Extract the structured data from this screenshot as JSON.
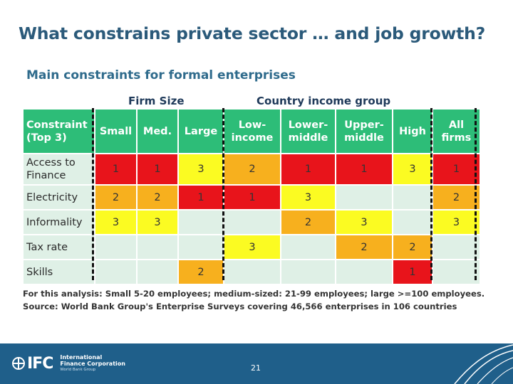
{
  "slide": {
    "title": "What constrains private sector … and job growth?",
    "subtitle": "Main constraints for formal enterprises",
    "groups": {
      "firm_size": "Firm Size",
      "income": "Country income group"
    },
    "headers": [
      "Constraint (Top 3)",
      "Small",
      "Med.",
      "Large",
      "Low-income",
      "Lower-middle",
      "Upper-middle",
      "High",
      "All firms"
    ],
    "rows": [
      {
        "label": "Access to Finance",
        "cells": [
          "1",
          "1",
          "3",
          "2",
          "1",
          "1",
          "3",
          "1"
        ],
        "colors": [
          "red",
          "red",
          "yellow",
          "orange",
          "red",
          "red",
          "yellow",
          "red"
        ]
      },
      {
        "label": "Electricity",
        "cells": [
          "2",
          "2",
          "1",
          "1",
          "3",
          "",
          "",
          "2"
        ],
        "colors": [
          "orange",
          "orange",
          "red",
          "red",
          "yellow",
          "empty",
          "empty",
          "orange"
        ]
      },
      {
        "label": "Informality",
        "cells": [
          "3",
          "3",
          "",
          "",
          "2",
          "3",
          "",
          "3"
        ],
        "colors": [
          "yellow",
          "yellow",
          "empty",
          "empty",
          "orange",
          "yellow",
          "empty",
          "yellow"
        ]
      },
      {
        "label": "Tax rate",
        "cells": [
          "",
          "",
          "",
          "3",
          "",
          "2",
          "2",
          ""
        ],
        "colors": [
          "empty",
          "empty",
          "empty",
          "yellow",
          "empty",
          "orange",
          "orange",
          "empty"
        ]
      },
      {
        "label": "Skills",
        "cells": [
          "",
          "",
          "2",
          "",
          "",
          "",
          "1",
          ""
        ],
        "colors": [
          "empty",
          "empty",
          "orange",
          "empty",
          "empty",
          "empty",
          "red",
          "empty"
        ]
      }
    ],
    "note_line1": "For this analysis: Small 5-20 employees; medium-sized: 21-99 employees; large >=100 employees.",
    "note_line2": "Source: World Bank Group's Enterprise Surveys covering 46,566 enterprises in 106 countries"
  },
  "footer": {
    "logo": "IFC",
    "org_line1": "International",
    "org_line2": "Finance Corporation",
    "org_line3": "World Bank Group",
    "page_number": "21"
  },
  "colors": {
    "red": "#e8141b",
    "orange": "#f7b01e",
    "yellow": "#fbfb22",
    "empty": "#dff0e6",
    "header": "#2dbd78",
    "footer": "#1f5f8a",
    "topbar": "#1e4d3f"
  }
}
